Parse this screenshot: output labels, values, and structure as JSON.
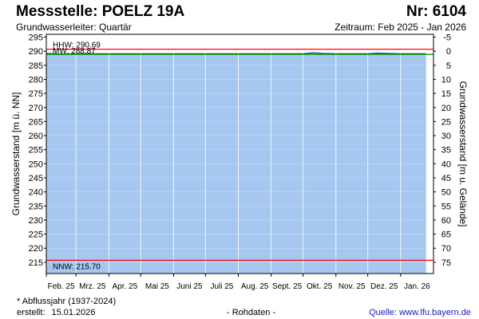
{
  "header": {
    "title": "Messstelle: POELZ 19A",
    "number": "Nr: 6104",
    "aquifer": "Grundwasserleiter: Quartär",
    "period": "Zeitraum: Feb 2025 - Jan 2026"
  },
  "footer": {
    "note": "* Abflussjahr (1937-2024)",
    "created_label": "erstellt:",
    "created_date": "15.01.2026",
    "raw": "- Rohdaten -",
    "source": "Quelle: www.lfu.bayern.de"
  },
  "colors": {
    "area": "#a6c8f0",
    "line": "#1f5fa8",
    "hhw": "#ff0000",
    "nnw": "#ff0000",
    "mw": "#00a000",
    "grid": "#ffffff"
  },
  "chart_data": {
    "type": "area",
    "ylabel": "Grundwasserstand [m ü. NN]",
    "ylabel_right": "Grundwasserstand [m u. Gelände]",
    "ylim": [
      211,
      296
    ],
    "y_ticks": [
      "215",
      "220",
      "225",
      "230",
      "235",
      "240",
      "245",
      "250",
      "255",
      "260",
      "265",
      "270",
      "275",
      "280",
      "285",
      "290",
      "295"
    ],
    "y2_ticks": [
      "-5",
      "0",
      "5",
      "10",
      "15",
      "20",
      "25",
      "30",
      "35",
      "40",
      "45",
      "50",
      "55",
      "60",
      "65",
      "70",
      "75"
    ],
    "x_ticks": [
      "Feb. 25",
      "Mrz. 25",
      "Apr. 25",
      "Mai 25",
      "Juni 25",
      "Juli 25",
      "Aug. 25",
      "Sept. 25",
      "Okt. 25",
      "Nov. 25",
      "Dez. 25",
      "Jan. 26"
    ],
    "x_range": [
      "2025-02-01",
      "2026-02-01"
    ],
    "series": [
      {
        "dates": [
          "2025-02-01",
          "2025-02-15",
          "2025-03-01",
          "2025-04-01",
          "2025-05-01",
          "2025-06-01",
          "2025-07-01",
          "2025-08-01",
          "2025-09-01",
          "2025-10-01",
          "2025-10-10",
          "2025-10-20",
          "2025-11-01",
          "2025-12-01",
          "2025-12-10",
          "2026-01-01",
          "2026-01-25"
        ],
        "values": [
          289.2,
          289.0,
          289.1,
          289.1,
          289.1,
          289.1,
          289.1,
          289.1,
          289.1,
          289.1,
          289.4,
          289.2,
          289.1,
          289.1,
          289.3,
          289.1,
          289.1
        ]
      }
    ],
    "reference_lines": [
      {
        "label": "HHW: 290.69",
        "value": 290.69
      },
      {
        "label": "MW: 288.87",
        "value": 288.87
      },
      {
        "label": "NNW: 215.70",
        "value": 215.7
      }
    ],
    "grid": true
  }
}
